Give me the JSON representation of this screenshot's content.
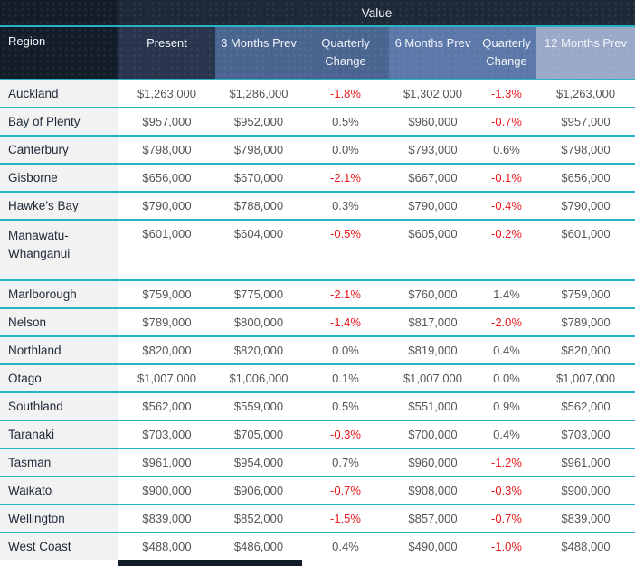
{
  "colors": {
    "header_dark": "#131c29",
    "value_bar": "#1d2937",
    "header_present": "#28354d",
    "header_mid": "#4a6490",
    "header_mid2": "#5b78a8",
    "header_light": "#9aa9c7",
    "header_text": "#f2f5fa",
    "divider_teal": "#27b3c4",
    "negative_red": "#e8191d",
    "value_text": "#515558",
    "region_text": "#1f2a38",
    "region_cell_bg": "#f2f2f2"
  },
  "chart_data": {
    "type": "table",
    "group_header": "Value",
    "columns": [
      "Region",
      "Present",
      "3 Months Prev",
      "Quarterly Change",
      "6 Months Prev",
      "Quarterly Change",
      "12 Months Prev"
    ],
    "rows": [
      [
        "Auckland",
        "$1,263,000",
        "$1,286,000",
        "-1.8%",
        "$1,302,000",
        "-1.3%",
        "$1,263,000"
      ],
      [
        "Bay of Plenty",
        "$957,000",
        "$952,000",
        "0.5%",
        "$960,000",
        "-0.7%",
        "$957,000"
      ],
      [
        "Canterbury",
        "$798,000",
        "$798,000",
        "0.0%",
        "$793,000",
        "0.6%",
        "$798,000"
      ],
      [
        "Gisborne",
        "$656,000",
        "$670,000",
        "-2.1%",
        "$667,000",
        "-0.1%",
        "$656,000"
      ],
      [
        "Hawke’s Bay",
        "$790,000",
        "$788,000",
        "0.3%",
        "$790,000",
        "-0.4%",
        "$790,000"
      ],
      [
        "Manawatu-Whanganui",
        "$601,000",
        "$604,000",
        "-0.5%",
        "$605,000",
        "-0.2%",
        "$601,000"
      ],
      [
        "Marlborough",
        "$759,000",
        "$775,000",
        "-2.1%",
        "$760,000",
        "1.4%",
        "$759,000"
      ],
      [
        "Nelson",
        "$789,000",
        "$800,000",
        "-1.4%",
        "$817,000",
        "-2.0%",
        "$789,000"
      ],
      [
        "Northland",
        "$820,000",
        "$820,000",
        "0.0%",
        "$819,000",
        "0.4%",
        "$820,000"
      ],
      [
        "Otago",
        "$1,007,000",
        "$1,006,000",
        "0.1%",
        "$1,007,000",
        "0.0%",
        "$1,007,000"
      ],
      [
        "Southland",
        "$562,000",
        "$559,000",
        "0.5%",
        "$551,000",
        "0.9%",
        "$562,000"
      ],
      [
        "Taranaki",
        "$703,000",
        "$705,000",
        "-0.3%",
        "$700,000",
        "0.4%",
        "$703,000"
      ],
      [
        "Tasman",
        "$961,000",
        "$954,000",
        "0.7%",
        "$960,000",
        "-1.2%",
        "$961,000"
      ],
      [
        "Waikato",
        "$900,000",
        "$906,000",
        "-0.7%",
        "$908,000",
        "-0.3%",
        "$900,000"
      ],
      [
        "Wellington",
        "$839,000",
        "$852,000",
        "-1.5%",
        "$857,000",
        "-0.7%",
        "$839,000"
      ],
      [
        "West Coast",
        "$488,000",
        "$486,000",
        "0.4%",
        "$490,000",
        "-1.0%",
        "$488,000"
      ]
    ]
  }
}
